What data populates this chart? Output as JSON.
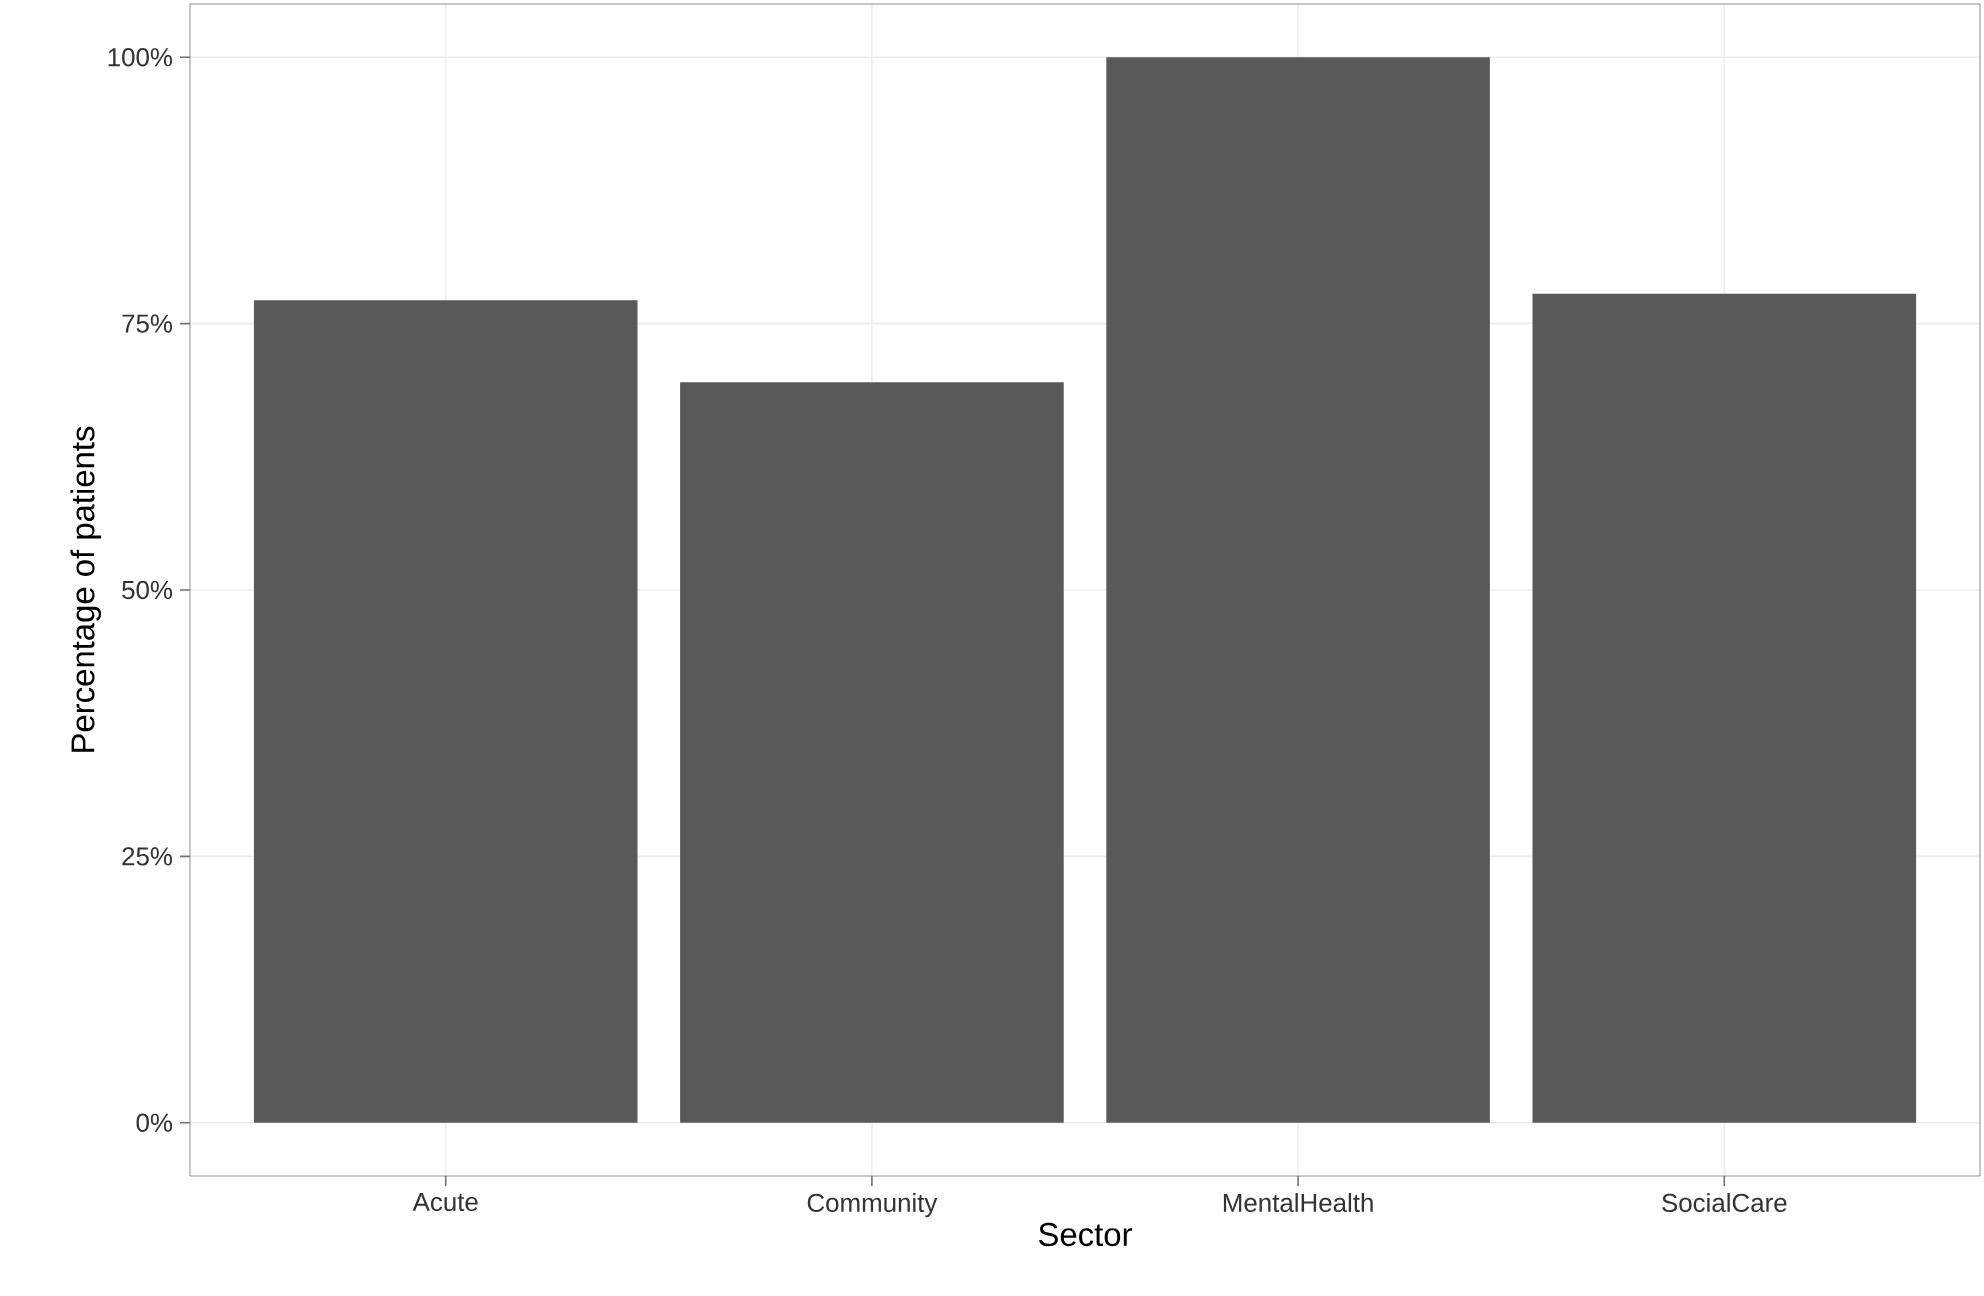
{
  "chart_data": {
    "type": "bar",
    "xlabel": "Sector",
    "ylabel": "Percentage of patients",
    "categories": [
      "Acute",
      "Community",
      "MentalHealth",
      "SocialCare"
    ],
    "values": [
      77.2,
      69.5,
      100,
      77.8
    ],
    "color": "#595959",
    "ylim": [
      -5,
      105
    ],
    "yticks": [
      {
        "value": 0,
        "label": "0%"
      },
      {
        "value": 25,
        "label": "25%"
      },
      {
        "value": 50,
        "label": "50%"
      },
      {
        "value": 75,
        "label": "75%"
      },
      {
        "value": 100,
        "label": "100%"
      }
    ],
    "grid": true
  }
}
